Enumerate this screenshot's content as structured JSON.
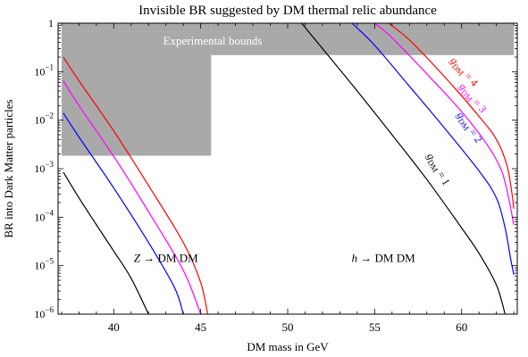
{
  "chart_data": {
    "type": "line",
    "title": "Invisible BR suggested by DM thermal relic abundance",
    "xlabel": "DM mass in GeV",
    "ylabel": "BR into Dark Matter particles",
    "xlim": [
      36.8,
      63.2
    ],
    "ylim": [
      1e-06,
      1
    ],
    "yscale": "log",
    "x_ticks": [
      40,
      45,
      50,
      55,
      60
    ],
    "x_tick_labels": [
      "40",
      "45",
      "50",
      "55",
      "60"
    ],
    "y_ticks": [
      1e-06,
      1e-05,
      0.0001,
      0.001,
      0.01,
      0.1,
      1
    ],
    "y_tick_labels": [
      {
        "base": "10",
        "exp": "−6"
      },
      {
        "base": "10",
        "exp": "−5"
      },
      {
        "base": "10",
        "exp": "−4"
      },
      {
        "base": "10",
        "exp": "−3"
      },
      {
        "base": "10",
        "exp": "−2"
      },
      {
        "base": "10",
        "exp": "−1"
      },
      {
        "base": "1",
        "exp": ""
      }
    ],
    "grid": false,
    "shaded_regions": [
      {
        "label": "Experimental bounds",
        "x": [
          37.0,
          45.6
        ],
        "y": [
          0.00185,
          1.0
        ],
        "color": "#a9a9a9"
      },
      {
        "label": "",
        "x": [
          45.6,
          63.0
        ],
        "y": [
          0.22,
          1.0
        ],
        "color": "#a9a9a9"
      }
    ],
    "annotations": [
      {
        "text": "Z → DM DM",
        "x": 43.0,
        "y": 1.2e-05
      },
      {
        "text": "h → DM DM",
        "x": 55.5,
        "y": 1.2e-05
      }
    ],
    "series": [
      {
        "name": "Z g=1",
        "color": "#000000",
        "curve_label": "",
        "label_x": 0,
        "label_y": 0,
        "label_angle": 0,
        "x": [
          37.1,
          38.0,
          39.0,
          40.0,
          41.0,
          42.0
        ],
        "y": [
          0.00085,
          0.00025,
          7e-05,
          2e-05,
          5.5e-06,
          1e-06
        ]
      },
      {
        "name": "Z g=2",
        "color": "#0000ff",
        "curve_label": "",
        "label_x": 0,
        "label_y": 0,
        "label_angle": 0,
        "x": [
          37.1,
          38.0,
          40.0,
          42.0,
          43.5,
          44.0
        ],
        "y": [
          0.014,
          0.0045,
          0.0004,
          3e-05,
          3.5e-06,
          1e-06
        ]
      },
      {
        "name": "Z g=3",
        "color": "#ff00ff",
        "curve_label": "",
        "label_x": 0,
        "label_y": 0,
        "label_angle": 0,
        "x": [
          37.1,
          38.0,
          40.0,
          42.0,
          44.0,
          45.0
        ],
        "y": [
          0.065,
          0.02,
          0.0018,
          0.00013,
          8e-06,
          1e-06
        ]
      },
      {
        "name": "Z g=4",
        "color": "#ff0000",
        "curve_label": "",
        "label_x": 0,
        "label_y": 0,
        "label_angle": 0,
        "x": [
          37.1,
          38.0,
          40.0,
          42.0,
          44.0,
          45.0,
          45.4
        ],
        "y": [
          0.2,
          0.065,
          0.006,
          0.00045,
          3e-05,
          4.5e-06,
          1e-06
        ]
      },
      {
        "name": "h g=1",
        "color": "#000000",
        "curve_label": "g_DM = 1",
        "label_x": 58.5,
        "label_y": 0.0009,
        "label_angle": 60,
        "x": [
          50.8,
          52.0,
          54.0,
          56.0,
          58.0,
          60.0,
          61.0,
          62.0,
          62.5
        ],
        "y": [
          1.0,
          0.3,
          0.04,
          0.005,
          0.0006,
          6e-05,
          1.8e-05,
          4e-06,
          1e-06
        ]
      },
      {
        "name": "h g=2",
        "color": "#0000ff",
        "curve_label": "g_DM = 2",
        "label_x": 60.3,
        "label_y": 0.0065,
        "label_angle": 55,
        "x": [
          53.7,
          55.0,
          57.0,
          59.0,
          61.0,
          62.0,
          62.5,
          62.8,
          63.0
        ],
        "y": [
          1.0,
          0.35,
          0.05,
          0.007,
          0.0009,
          0.00025,
          6e-05,
          1.5e-05,
          6.5e-06
        ]
      },
      {
        "name": "h g=3",
        "color": "#ff00ff",
        "curve_label": "g_DM = 3",
        "label_x": 60.5,
        "label_y": 0.026,
        "label_angle": 50,
        "x": [
          55.0,
          56.0,
          58.0,
          60.0,
          61.5,
          62.3,
          62.7,
          63.0
        ],
        "y": [
          1.0,
          0.5,
          0.09,
          0.015,
          0.003,
          0.0009,
          0.00025,
          7e-05
        ]
      },
      {
        "name": "h g=4",
        "color": "#ff0000",
        "curve_label": "g_DM = 4",
        "label_x": 60.0,
        "label_y": 0.09,
        "label_angle": 48,
        "x": [
          55.8,
          57.0,
          59.0,
          61.0,
          62.0,
          62.6,
          62.9,
          63.0
        ],
        "y": [
          1.0,
          0.45,
          0.08,
          0.012,
          0.004,
          0.0012,
          0.0003,
          0.00015
        ]
      }
    ]
  }
}
